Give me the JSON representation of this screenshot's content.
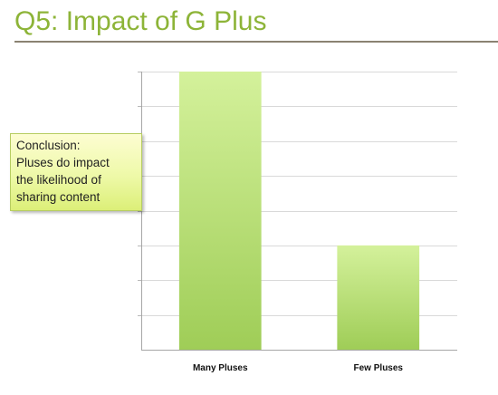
{
  "slide": {
    "title": "Q5: Impact of G Plus"
  },
  "callout": {
    "lines": [
      "Conclusion:",
      "Pluses do impact",
      "the likelihood of",
      "sharing content"
    ]
  },
  "colors": {
    "title": "#8db438",
    "bar_top": "#d4f19b",
    "bar_bottom": "#9fcd57",
    "gridline": "#d9d9d9",
    "title_rule": "#8a8272"
  },
  "chart_data": {
    "type": "bar",
    "categories": [
      "Many Pluses",
      "Few Pluses"
    ],
    "values": [
      8,
      3
    ],
    "title": "",
    "xlabel": "",
    "ylabel": "",
    "ylim": [
      0,
      8
    ],
    "grid": true,
    "y_tick_labels": false,
    "legend": "none"
  }
}
